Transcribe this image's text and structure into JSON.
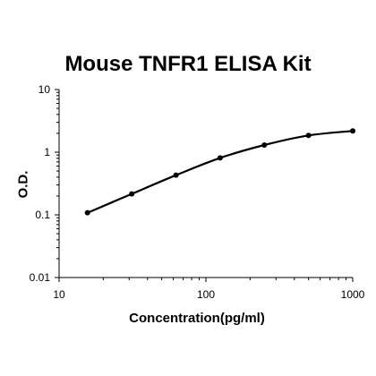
{
  "chart_data": {
    "type": "line",
    "title": "Mouse TNFR1 ELISA Kit",
    "xlabel": "Concentration(pg/ml)",
    "ylabel": "O.D.",
    "xscale": "log",
    "yscale": "log",
    "xlim": [
      10,
      1000
    ],
    "ylim": [
      0.01,
      10
    ],
    "xticks": [
      "10",
      "100",
      "1000"
    ],
    "yticks": [
      "10",
      "1",
      "0.1",
      "0.01"
    ],
    "grid": false,
    "series": [
      {
        "x": [
          15.6,
          31.25,
          62.5,
          125,
          250,
          500,
          1000
        ],
        "y": [
          0.108,
          0.216,
          0.43,
          0.81,
          1.3,
          1.85,
          2.18
        ]
      }
    ],
    "colors": {
      "line": "#000000",
      "marker": "#000000",
      "axis": "#000000"
    }
  }
}
